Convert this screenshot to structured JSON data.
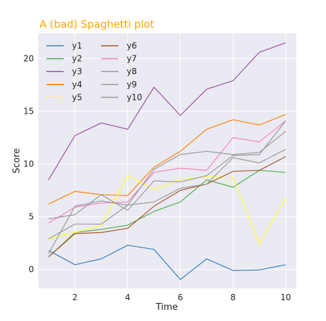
{
  "chart_data": {
    "type": "line",
    "title": "A (bad) Spaghetti plot",
    "title_color": "#FFA500",
    "xlabel": "Time",
    "ylabel": "Score",
    "xlim": [
      0.6,
      10.4
    ],
    "ylim": [
      -1.8,
      22.4
    ],
    "xticks": [
      2,
      4,
      6,
      8,
      10
    ],
    "yticks": [
      0,
      5,
      10,
      15,
      20
    ],
    "grid": true,
    "legend_placement": "upper-left",
    "legend_columns": 2,
    "background": "#EAEAF2",
    "x": [
      1,
      2,
      3,
      4,
      5,
      6,
      7,
      8,
      9,
      10
    ],
    "series": [
      {
        "name": "y1",
        "color": "#377EB8",
        "values": [
          1.8,
          0.45,
          1.0,
          2.3,
          1.9,
          -0.95,
          1.0,
          -0.1,
          -0.05,
          0.45
        ]
      },
      {
        "name": "y2",
        "color": "#4DAF4A",
        "values": [
          1.2,
          3.5,
          3.8,
          4.2,
          5.5,
          6.4,
          8.5,
          7.8,
          9.4,
          9.2
        ]
      },
      {
        "name": "y3",
        "color": "#984EA3",
        "values": [
          8.5,
          12.7,
          13.9,
          13.3,
          17.3,
          14.6,
          17.1,
          17.9,
          20.6,
          21.5
        ]
      },
      {
        "name": "y4",
        "color": "#FF7F00",
        "values": [
          6.2,
          7.4,
          7.1,
          7.0,
          9.7,
          11.2,
          13.3,
          14.2,
          13.7,
          14.7
        ]
      },
      {
        "name": "y5",
        "color": "#FFFF33",
        "values": [
          2.9,
          3.5,
          4.2,
          8.9,
          7.6,
          8.5,
          8.8,
          8.7,
          2.4,
          6.8
        ]
      },
      {
        "name": "y6",
        "color": "#A65628",
        "values": [
          1.2,
          3.4,
          3.5,
          3.9,
          6.0,
          7.5,
          8.1,
          9.3,
          9.4,
          10.7
        ]
      },
      {
        "name": "y7",
        "color": "#F781BF",
        "values": [
          4.4,
          5.9,
          6.3,
          6.4,
          9.2,
          9.6,
          9.4,
          12.5,
          12.1,
          14.1
        ]
      },
      {
        "name": "y8",
        "color": "#999999",
        "values": [
          2.9,
          4.3,
          4.3,
          6.1,
          6.4,
          7.7,
          8.1,
          10.6,
          10.1,
          11.4
        ]
      },
      {
        "name": "y9",
        "color": "#999999",
        "values": [
          4.8,
          5.2,
          7.1,
          5.6,
          8.4,
          8.3,
          8.9,
          10.8,
          10.9,
          14.1
        ]
      },
      {
        "name": "y10",
        "color": "#999999",
        "values": [
          1.5,
          6.0,
          6.5,
          6.1,
          9.5,
          10.9,
          11.2,
          10.9,
          11.1,
          13.1
        ]
      }
    ]
  }
}
